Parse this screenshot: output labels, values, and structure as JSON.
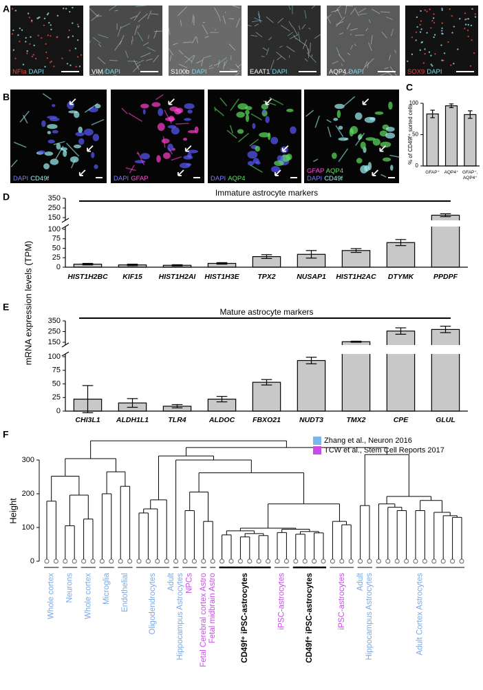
{
  "panel_labels": [
    "A",
    "B",
    "C",
    "D",
    "E",
    "F"
  ],
  "panel_a": {
    "tiles": [
      [
        {
          "text": "NFIa",
          "color": "#e8453c"
        },
        {
          "text": "DAPI",
          "color": "#7fd8e8"
        }
      ],
      [
        {
          "text": "VIM",
          "color": "#ffffff"
        },
        {
          "text": "DAPI",
          "color": "#7fd8e8"
        }
      ],
      [
        {
          "text": "S100b",
          "color": "#ffffff"
        },
        {
          "text": "DAPI",
          "color": "#7fd8e8"
        }
      ],
      [
        {
          "text": "EAAT1",
          "color": "#ffffff"
        },
        {
          "text": "DAPI",
          "color": "#7fd8e8"
        }
      ],
      [
        {
          "text": "AQP4",
          "color": "#ffffff"
        },
        {
          "text": "DAPI",
          "color": "#7fd8e8"
        }
      ],
      [
        {
          "text": "SOX9",
          "color": "#e8453c"
        },
        {
          "text": "DAPI",
          "color": "#7fd8e8"
        }
      ]
    ]
  },
  "panel_b": {
    "tiles": [
      [
        [
          {
            "text": "DAPI",
            "color": "#7b7bff"
          },
          {
            "text": "CD49f",
            "color": "#9ff2f2"
          }
        ]
      ],
      [
        [
          {
            "text": "DAPI",
            "color": "#7b7bff"
          },
          {
            "text": "GFAP",
            "color": "#ff4fd8"
          }
        ]
      ],
      [
        [
          {
            "text": "DAPI",
            "color": "#7b7bff"
          },
          {
            "text": "AQP4",
            "color": "#5fe05f"
          }
        ]
      ],
      [
        [
          {
            "text": "GFAP",
            "color": "#ff4fd8"
          },
          {
            "text": "AQP4",
            "color": "#5fe05f"
          }
        ],
        [
          {
            "text": "DAPI",
            "color": "#7b7bff"
          },
          {
            "text": "CD49f",
            "color": "#9ff2f2"
          }
        ]
      ]
    ]
  },
  "chart_data": [
    {
      "type": "bar",
      "ylabel": "% of CD49f⁺ sorted cells",
      "categories": [
        "GFAP⁺",
        "AQP4⁺",
        "GFAP⁺, AQP4⁺"
      ],
      "values": [
        83,
        96,
        82
      ],
      "errors": [
        6,
        3,
        6
      ],
      "color": "#c8c8c8",
      "ylim": [
        0,
        100
      ],
      "yticks": [
        0,
        50,
        100
      ]
    },
    {
      "type": "bar",
      "title": "Immature astrocyte markers",
      "ylabel": "mRNA expression levels (TPM)",
      "categories": [
        "HIST1H2BC",
        "KIF15",
        "HIST1H2AI",
        "HIST1H3E",
        "TPX2",
        "NUSAP1",
        "HIST1H2AC",
        "DTYMK",
        "PPDPF"
      ],
      "values": [
        8,
        6,
        5,
        10,
        28,
        34,
        44,
        65,
        175
      ],
      "errors": [
        2,
        2,
        1.5,
        2,
        5,
        10,
        5,
        8,
        15
      ],
      "color": "#c8c8c8",
      "ylim": [
        0,
        350
      ],
      "ybreak": [
        100,
        150
      ],
      "yticks": [
        0,
        25,
        50,
        75,
        100,
        150,
        250,
        350
      ]
    },
    {
      "type": "bar",
      "title": "Mature astrocyte markers",
      "categories": [
        "CHI3L1",
        "ALDH1L1",
        "TLR4",
        "ALDOC",
        "FBXO21",
        "NUDT3",
        "TMX2",
        "CPE",
        "GLUL"
      ],
      "values": [
        22,
        15,
        9,
        22,
        53,
        93,
        155,
        255,
        270
      ],
      "errors": [
        25,
        8,
        3,
        5,
        5,
        6,
        5,
        30,
        30
      ],
      "color": "#c8c8c8",
      "ylim": [
        0,
        350
      ],
      "ybreak": [
        100,
        150
      ],
      "yticks": [
        0,
        25,
        50,
        75,
        100,
        150,
        250,
        350
      ]
    },
    {
      "type": "dendrogram",
      "ylabel": "Height",
      "ylim": [
        0,
        300
      ],
      "yticks": [
        0,
        100,
        200,
        300
      ],
      "legend": [
        {
          "name": "Zhang et al., Neuron 2016",
          "color": "#79b6f0"
        },
        {
          "name": "TCW et al., Stem Cell Reports 2017",
          "color": "#c94ae8"
        }
      ],
      "tree": {
        "h": 357,
        "c": [
          {
            "h": 304,
            "c": [
              {
                "h": 252,
                "c": [
                  {
                    "h": 178,
                    "c": [
                      null,
                      null
                    ]
                  },
                  {
                    "h": 196,
                    "c": [
                      {
                        "h": 105,
                        "c": [
                          null,
                          null
                        ]
                      },
                      {
                        "h": 125,
                        "c": [
                          null,
                          null
                        ]
                      }
                    ]
                  }
                ]
              },
              {
                "h": 265,
                "c": [
                  {
                    "h": 200,
                    "c": [
                      null,
                      null
                    ]
                  },
                  {
                    "h": 222,
                    "c": [
                      null,
                      null
                    ]
                  }
                ]
              }
            ]
          },
          {
            "h": 337,
            "c": [
              {
                "h": 312,
                "c": [
                  {
                    "h": 182,
                    "c": [
                      {
                        "h": 155,
                        "c": [
                          {
                            "h": 143,
                            "c": [
                              null,
                              null
                            ]
                          },
                          null
                        ]
                      },
                      null
                    ]
                  },
                  {
                    "h": 300,
                    "c": [
                      null,
                      {
                        "h": 262,
                        "c": [
                          {
                            "h": 205,
                            "c": [
                              {
                                "h": 150,
                                "c": [
                                  null,
                                  null
                                ]
                              },
                              {
                                "h": 118,
                                "c": [
                                  null,
                                  null
                                ]
                              }
                            ]
                          },
                          {
                            "h": 170,
                            "c": [
                              {
                                "h": 98,
                                "c": [
                                  {
                                    "h": 90,
                                    "c": [
                                      {
                                        "h": 78,
                                        "c": [
                                          null,
                                          null
                                        ]
                                      },
                                      {
                                        "h": 82,
                                        "c": [
                                          {
                                            "h": 72,
                                            "c": [
                                              null,
                                              null
                                            ]
                                          },
                                          {
                                            "h": 76,
                                            "c": [
                                              null,
                                              null
                                            ]
                                          }
                                        ]
                                      }
                                    ]
                                  },
                                  {
                                    "h": 95,
                                    "c": [
                                      {
                                        "h": 85,
                                        "c": [
                                          null,
                                          null
                                        ]
                                      },
                                      {
                                        "h": 88,
                                        "c": [
                                          {
                                            "h": 80,
                                            "c": [
                                              null,
                                              null
                                            ]
                                          },
                                          {
                                            "h": 84,
                                            "c": [
                                              null,
                                              null
                                            ]
                                          }
                                        ]
                                      }
                                    ]
                                  }
                                ]
                              },
                              {
                                "h": 118,
                                "c": [
                                  null,
                                  {
                                    "h": 108,
                                    "c": [
                                      null,
                                      null
                                    ]
                                  }
                                ]
                              }
                            ]
                          }
                        ]
                      }
                    ]
                  }
                ]
              },
              {
                "h": 316,
                "c": [
                  {
                    "h": 165,
                    "c": [
                      null,
                      null
                    ]
                  },
                  {
                    "h": 192,
                    "c": [
                      {
                        "h": 170,
                        "c": [
                          null,
                          {
                            "h": 160,
                            "c": [
                              null,
                              {
                                "h": 150,
                                "c": [
                                  null,
                                  null
                                ]
                              }
                            ]
                          }
                        ]
                      },
                      {
                        "h": 180,
                        "c": [
                          {
                            "h": 150,
                            "c": [
                              null,
                              null
                            ]
                          },
                          {
                            "h": 145,
                            "c": [
                              null,
                              {
                                "h": 135,
                                "c": [
                                  null,
                                  {
                                    "h": 130,
                                    "c": [
                                      null,
                                      null
                                    ]
                                  }
                                ]
                              }
                            ]
                          }
                        ]
                      }
                    ]
                  }
                ]
              }
            ]
          }
        ]
      },
      "groups": [
        {
          "lines": [
            "Whole cortex"
          ],
          "leaves": 2,
          "color": "#79a8e8",
          "bold": false
        },
        {
          "lines": [
            "Neurons"
          ],
          "leaves": 2,
          "color": "#79a8e8",
          "bold": false
        },
        {
          "lines": [
            "Whole cortex"
          ],
          "leaves": 2,
          "color": "#79a8e8",
          "bold": false
        },
        {
          "lines": [
            "Microglia"
          ],
          "leaves": 2,
          "color": "#79a8e8",
          "bold": false
        },
        {
          "lines": [
            "Endothelial"
          ],
          "leaves": 2,
          "color": "#79a8e8",
          "bold": false
        },
        {
          "lines": [
            "Oligodendrocytes"
          ],
          "leaves": 4,
          "color": "#79a8e8",
          "bold": false
        },
        {
          "lines": [
            "Adult",
            "Hippocampus Astrocytes"
          ],
          "leaves": 1,
          "color": "#79a8e8",
          "bold": false
        },
        {
          "lines": [
            "NPCs"
          ],
          "leaves": 2,
          "color": "#c94ae8",
          "bold": false
        },
        {
          "lines": [
            "Fetal Cerebral cortex Astro"
          ],
          "leaves": 1,
          "color": "#c94ae8",
          "bold": false
        },
        {
          "lines": [
            "Fetal midbrain Astro"
          ],
          "leaves": 1,
          "color": "#c94ae8",
          "bold": false
        },
        {
          "lines": [
            "CD49f⁺ iPSC-astrocytes"
          ],
          "leaves": 6,
          "color": "#000000",
          "bold": true
        },
        {
          "lines": [
            "iPSC-astrocytes"
          ],
          "leaves": 2,
          "color": "#c94ae8",
          "bold": false
        },
        {
          "lines": [
            "CD49f⁺ iPSC-astrocytes"
          ],
          "leaves": 4,
          "color": "#000000",
          "bold": true
        },
        {
          "lines": [
            "iPSC-astrocytes"
          ],
          "leaves": 3,
          "color": "#c94ae8",
          "bold": false
        },
        {
          "lines": [
            "Adult",
            "Hippocampus Astrocytes"
          ],
          "leaves": 2,
          "color": "#79a8e8",
          "bold": false
        },
        {
          "lines": [
            "Adult Cortex Astrocytes"
          ],
          "leaves": 10,
          "color": "#79a8e8",
          "bold": false
        }
      ]
    }
  ]
}
